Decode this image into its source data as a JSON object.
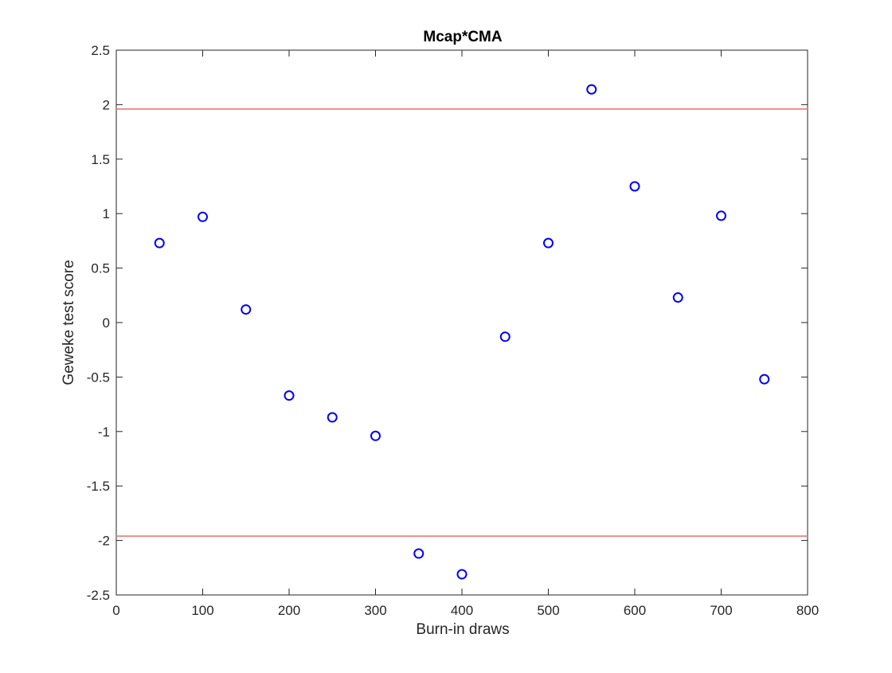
{
  "chart_data": {
    "type": "scatter",
    "title": "Mcap*CMA",
    "xlabel": "Burn-in draws",
    "ylabel": "Geweke test score",
    "xlim": [
      0,
      800
    ],
    "ylim": [
      -2.5,
      2.5
    ],
    "xticks": [
      0,
      100,
      200,
      300,
      400,
      500,
      600,
      700,
      800
    ],
    "yticks": [
      -2.5,
      -2,
      -1.5,
      -1,
      -0.5,
      0,
      0.5,
      1,
      1.5,
      2,
      2.5
    ],
    "xtick_labels": [
      "0",
      "100",
      "200",
      "300",
      "400",
      "500",
      "600",
      "700",
      "800"
    ],
    "ytick_labels": [
      "-2.5",
      "-2",
      "-1.5",
      "-1",
      "-0.5",
      "0",
      "0.5",
      "1",
      "1.5",
      "2",
      "2.5"
    ],
    "grid": false,
    "box": true,
    "series": [
      {
        "marker": "circle",
        "color": "#0000ff",
        "x": [
          50,
          100,
          150,
          200,
          250,
          300,
          350,
          400,
          450,
          500,
          550,
          600,
          650,
          700,
          750
        ],
        "y": [
          0.73,
          0.97,
          0.12,
          -0.67,
          -0.87,
          -1.04,
          -2.12,
          -2.31,
          -0.13,
          0.73,
          2.14,
          1.25,
          0.23,
          0.98,
          -0.52
        ]
      }
    ],
    "reference_lines": [
      {
        "y": 1.96,
        "color": "#f08080"
      },
      {
        "y": -1.96,
        "color": "#f08080"
      }
    ]
  }
}
